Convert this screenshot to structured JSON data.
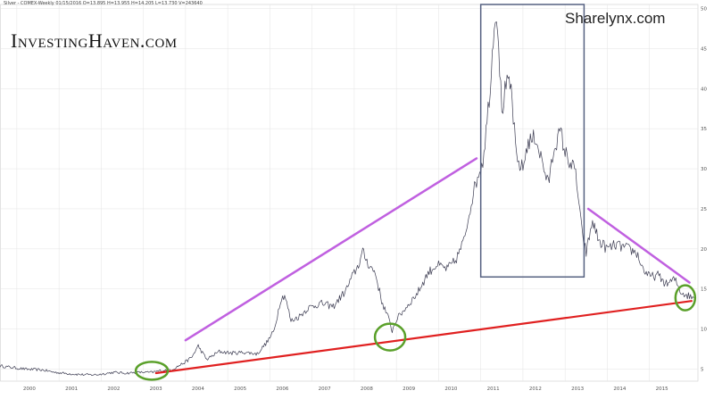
{
  "header": {
    "info": "Silver - COMEX-Weekly   01/15/2016   O=13.895   H=13.955   H=14.205   L=13.730   V=243640"
  },
  "logos": {
    "left": "InvestingHaven.com",
    "right": "Sharelynx.com"
  },
  "colors": {
    "price": "#3a3a50",
    "support": "#e02020",
    "resistance": "#c060e0",
    "circle": "#5aa02a",
    "box": "#556080"
  },
  "chart_data": {
    "type": "line",
    "title": "",
    "xlabel": "",
    "ylabel": "",
    "xlim": [
      1999.6,
      2016.15
    ],
    "ylim": [
      3.5,
      50.5
    ],
    "x_ticks": [
      "2000",
      "2001",
      "2002",
      "2003",
      "2004",
      "2005",
      "2006",
      "2007",
      "2008",
      "2009",
      "2010",
      "2011",
      "2012",
      "2013",
      "2014",
      "2015"
    ],
    "y_ticks": [
      5,
      10,
      15,
      20,
      25,
      30,
      35,
      40,
      45,
      50
    ],
    "grid": true,
    "series": [
      {
        "x": [
          1999.6,
          1999.9,
          2000.2,
          2000.6,
          2000.9,
          2001.3,
          2001.6,
          2001.9,
          2002.3,
          2002.6,
          2002.9,
          2003.2,
          2003.4,
          2003.7,
          2004.0,
          2004.15,
          2004.3,
          2004.5,
          2004.8,
          2005.1,
          2005.4,
          2005.7,
          2005.95,
          2006.1,
          2006.25,
          2006.35,
          2006.5,
          2006.7,
          2006.9,
          2007.2,
          2007.5,
          2007.8,
          2007.95,
          2008.1,
          2008.2,
          2008.35,
          2008.5,
          2008.65,
          2008.8,
          2008.9,
          2009.0,
          2009.2,
          2009.5,
          2009.75,
          2009.95,
          2010.2,
          2010.4,
          2010.6,
          2010.8,
          2010.95,
          2011.05,
          2011.15,
          2011.25,
          2011.32,
          2011.4,
          2011.5,
          2011.6,
          2011.72,
          2011.85,
          2012.0,
          2012.1,
          2012.3,
          2012.5,
          2012.6,
          2012.75,
          2012.9,
          2013.0,
          2013.1,
          2013.25,
          2013.4,
          2013.5,
          2013.65,
          2013.8,
          2014.0,
          2014.2,
          2014.5,
          2014.7,
          2014.85,
          2015.0,
          2015.2,
          2015.4,
          2015.6,
          2015.75,
          2015.9,
          2016.05
        ],
        "y": [
          5.4,
          5.2,
          5.0,
          4.9,
          4.6,
          4.4,
          4.3,
          4.3,
          4.6,
          4.5,
          4.6,
          4.6,
          4.8,
          5.0,
          5.9,
          6.5,
          7.9,
          6.2,
          7.2,
          7.0,
          7.1,
          6.9,
          8.5,
          9.8,
          13.6,
          14.3,
          11.0,
          11.6,
          12.6,
          13.2,
          12.8,
          14.8,
          16.5,
          18.0,
          19.6,
          18.0,
          17.0,
          13.5,
          11.5,
          9.8,
          11.2,
          12.5,
          14.5,
          17.0,
          18.0,
          17.5,
          18.5,
          21.0,
          26.5,
          29.5,
          31.0,
          36.0,
          42.0,
          49.0,
          48.5,
          37.0,
          40.5,
          40.0,
          31.0,
          30.0,
          33.0,
          34.0,
          30.0,
          28.0,
          33.0,
          34.5,
          32.0,
          31.0,
          29.5,
          22.0,
          19.5,
          23.5,
          21.0,
          20.0,
          20.5,
          20.0,
          19.5,
          17.5,
          16.5,
          16.7,
          15.6,
          16.2,
          14.6,
          14.2,
          13.9
        ]
      }
    ],
    "annotations": {
      "resistance_lines": [
        {
          "x": [
            2004.0,
            2010.9
          ],
          "y": [
            8.6,
            31.3
          ]
        },
        {
          "x": [
            2013.55,
            2015.95
          ],
          "y": [
            25.0,
            15.8
          ]
        }
      ],
      "support_line": {
        "x": [
          2003.3,
          2016.0
        ],
        "y": [
          4.5,
          13.5
        ]
      },
      "circles": [
        {
          "x": 2003.2,
          "y": 4.8
        },
        {
          "x": 2008.85,
          "y": 9.0
        },
        {
          "x": 2015.85,
          "y": 13.9
        }
      ],
      "box": {
        "x": [
          2011.0,
          2013.45
        ],
        "y": [
          16.5,
          50.5
        ]
      }
    }
  }
}
